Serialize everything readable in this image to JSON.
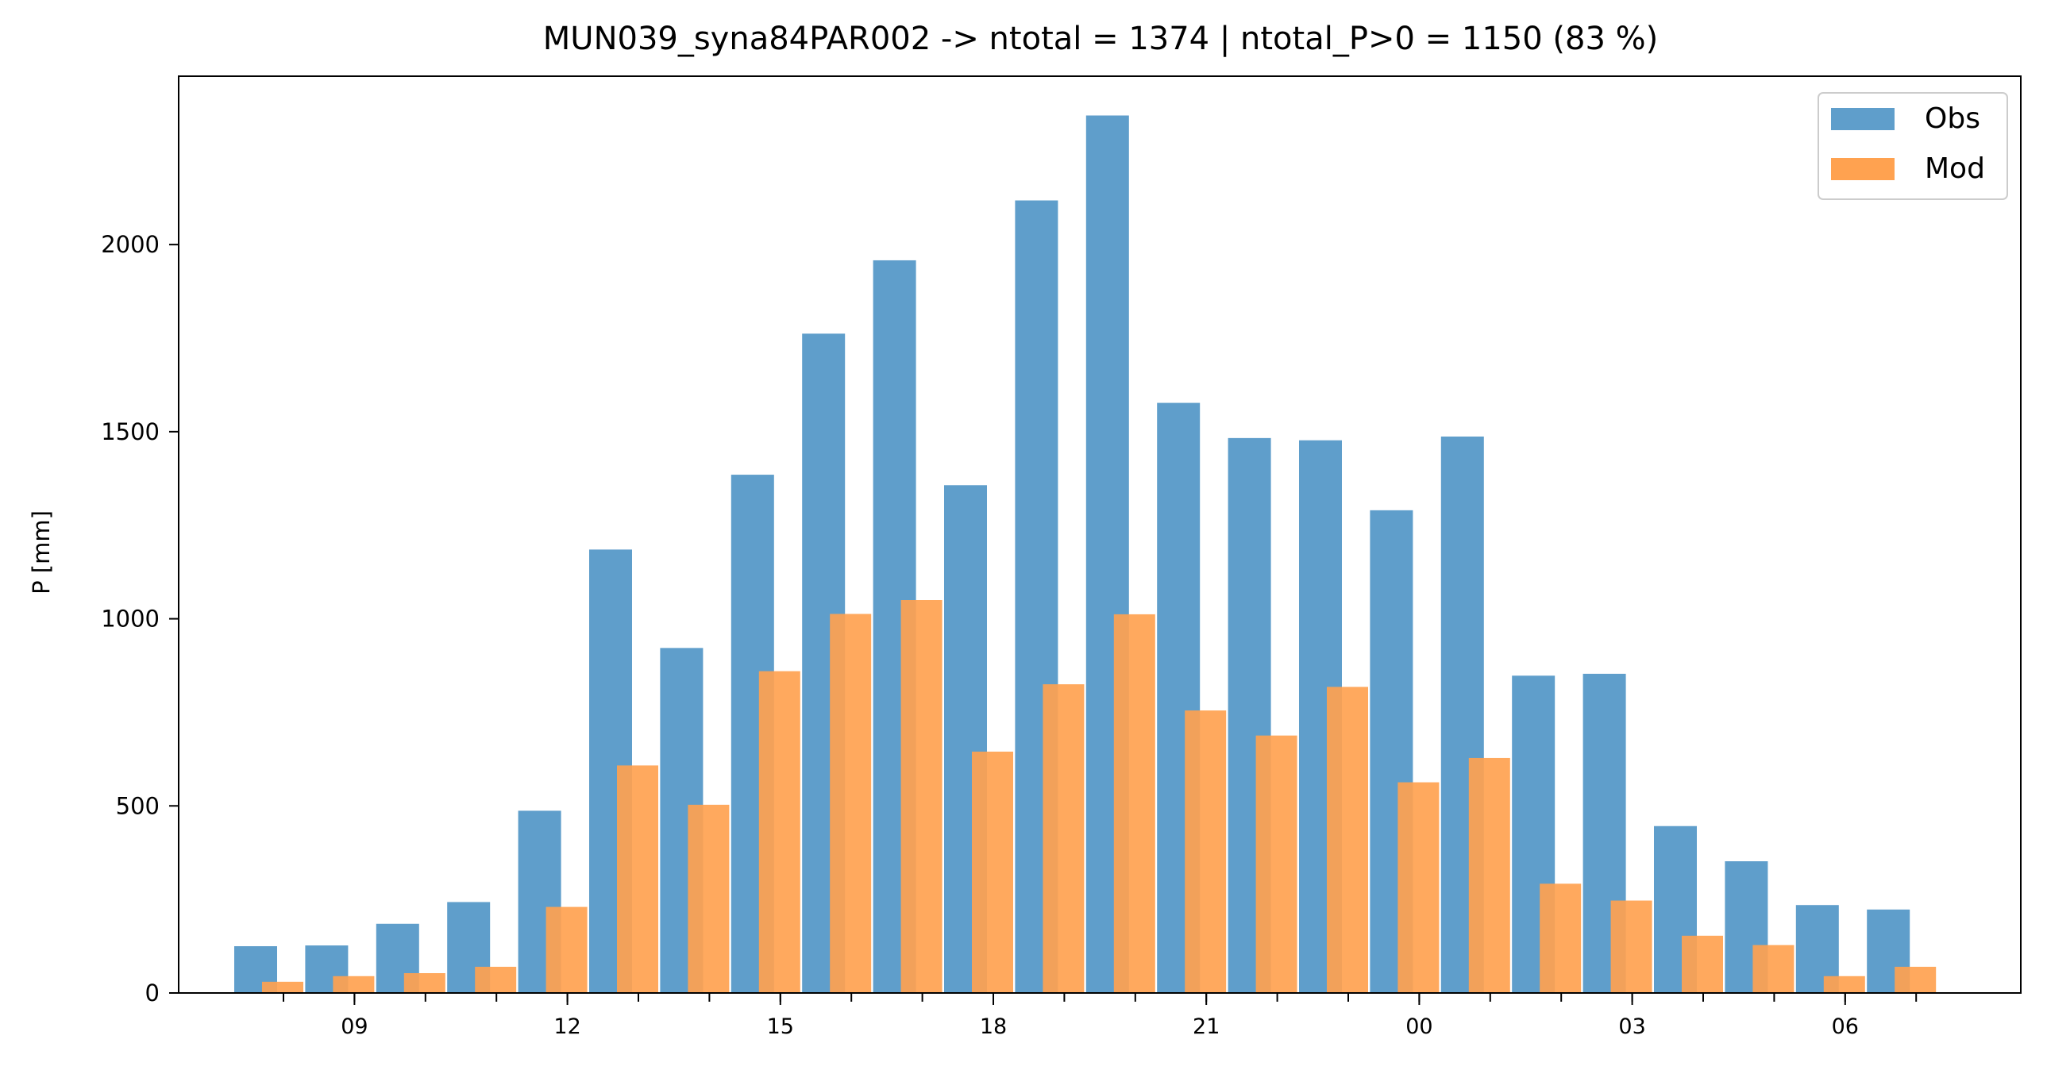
{
  "chart_data": {
    "type": "bar",
    "title": "MUN039_syna84PAR002 -> ntotal = 1374 | ntotal_P>0 = 1150 (83 %)",
    "xlabel": "",
    "ylabel": "P [mm]",
    "ylim": [
      0,
      2450
    ],
    "yticks": [
      0,
      500,
      1000,
      1500,
      2000
    ],
    "hours": [
      8,
      9,
      10,
      11,
      12,
      13,
      14,
      15,
      16,
      17,
      18,
      19,
      20,
      21,
      22,
      23,
      0,
      1,
      2,
      3,
      4,
      5,
      6,
      7
    ],
    "xtick_labels": [
      "09",
      "12",
      "15",
      "18",
      "21",
      "00",
      "03",
      "06"
    ],
    "series": [
      {
        "name": "Obs",
        "color": "#5f9ecb",
        "values": [
          125,
          127,
          185,
          243,
          487,
          1185,
          922,
          1385,
          1762,
          1958,
          1357,
          2118,
          2345,
          1577,
          1483,
          1477,
          1290,
          1487,
          848,
          853,
          446,
          352,
          235,
          223
        ]
      },
      {
        "name": "Mod",
        "color": "#ffa250",
        "values": [
          30,
          45,
          53,
          70,
          230,
          608,
          503,
          860,
          1013,
          1050,
          645,
          825,
          1012,
          755,
          688,
          818,
          563,
          628,
          292,
          247,
          153,
          128,
          45,
          70
        ]
      }
    ],
    "legend_position": "top-right",
    "grid": false
  }
}
